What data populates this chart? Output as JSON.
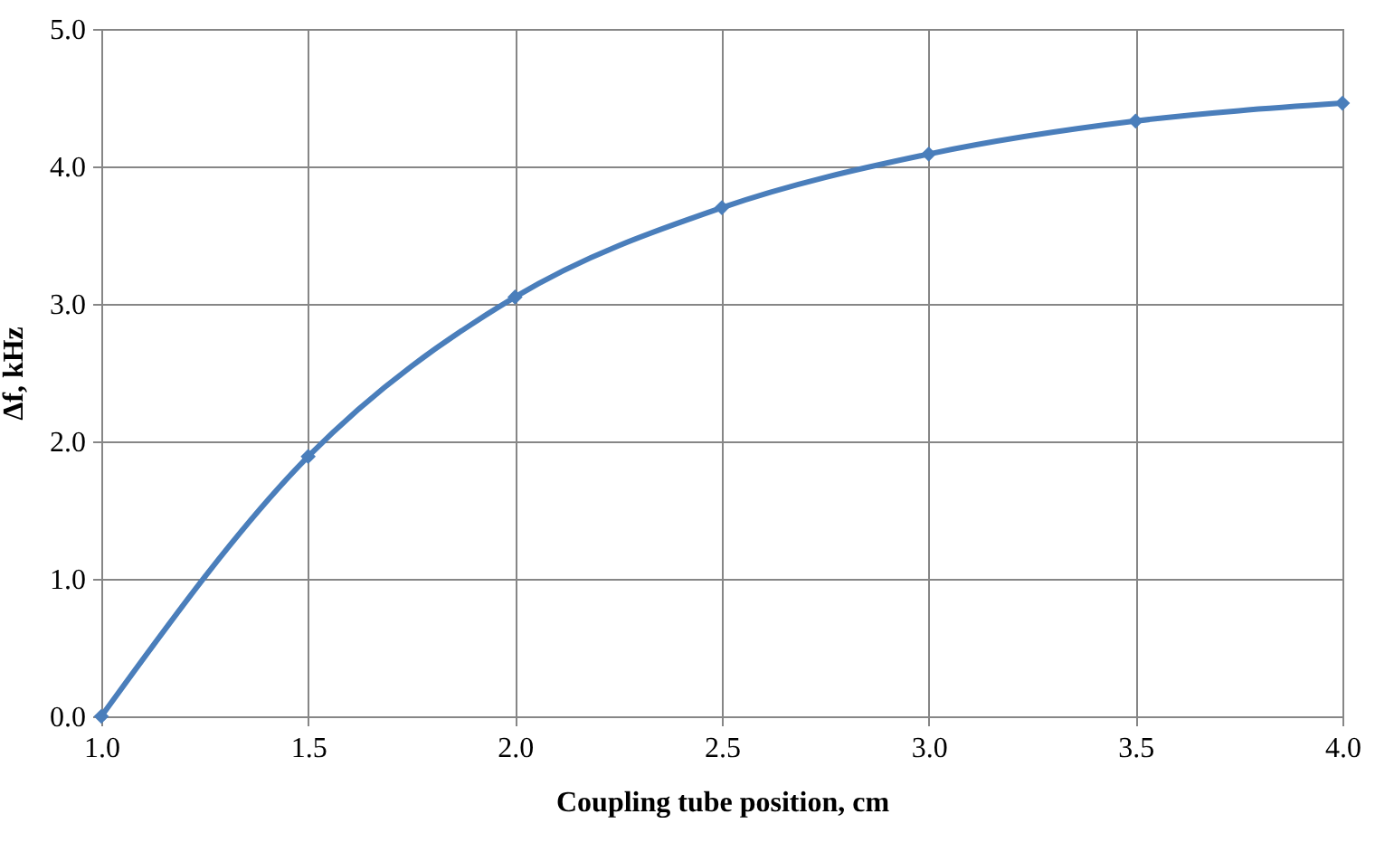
{
  "chart_data": {
    "type": "line",
    "xlabel": "Coupling tube position, cm",
    "ylabel": "Δf, kHz",
    "x": [
      1.0,
      1.5,
      2.0,
      2.5,
      3.0,
      3.5,
      4.0
    ],
    "series": [
      {
        "color": "#4a7ebb",
        "values": [
          0,
          1.89,
          3.05,
          3.7,
          4.09,
          4.33,
          4.46
        ]
      }
    ],
    "xlim": [
      1.0,
      4.0
    ],
    "xticks": [
      {
        "value": 1,
        "label": "1.0"
      },
      {
        "value": 1.5,
        "label": "1.5"
      },
      {
        "value": 2,
        "label": "2.0"
      },
      {
        "value": 2.5,
        "label": "2.5"
      },
      {
        "value": 3,
        "label": "3.0"
      },
      {
        "value": 3.5,
        "label": "3.5"
      },
      {
        "value": 4,
        "label": "4.0"
      }
    ],
    "ylim": [
      0,
      5.0
    ],
    "yticks": [
      {
        "value": 0,
        "label": "0.0"
      },
      {
        "value": 1,
        "label": "1.0"
      },
      {
        "value": 2,
        "label": "2.0"
      },
      {
        "value": 3,
        "label": "3.0"
      },
      {
        "value": 4,
        "label": "4.0"
      },
      {
        "value": 5,
        "label": "5.0"
      }
    ],
    "grid": true,
    "marker": "diamond",
    "line_style": "solid"
  }
}
